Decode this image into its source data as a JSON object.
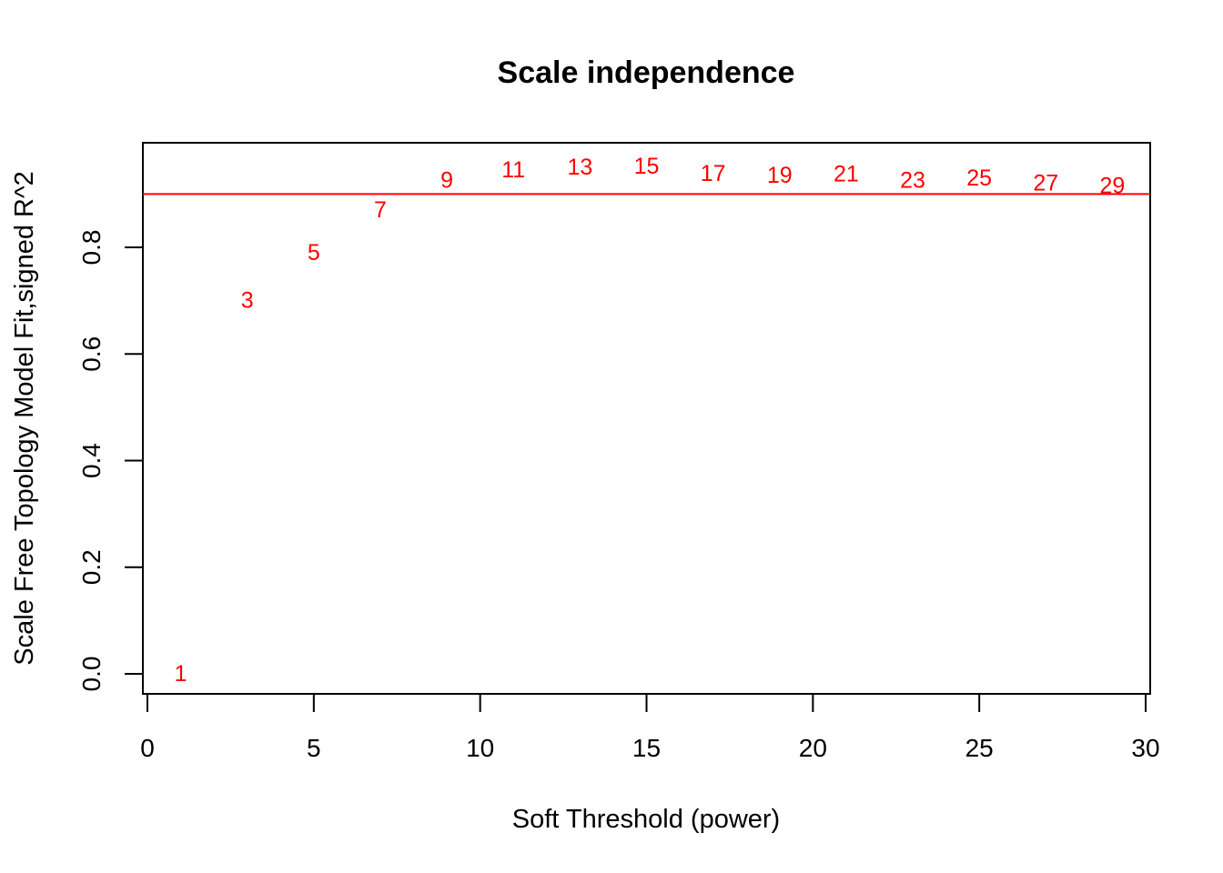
{
  "chart_data": {
    "type": "scatter",
    "title": "Scale independence",
    "xlabel": "Soft Threshold (power)",
    "ylabel": "Scale Free Topology Model Fit,signed R^2",
    "xlim": [
      0,
      30
    ],
    "ylim": [
      0,
      1
    ],
    "x_ticks": [
      "0",
      "5",
      "10",
      "15",
      "20",
      "25",
      "30"
    ],
    "y_ticks": [
      "0.0",
      "0.2",
      "0.4",
      "0.6",
      "0.8"
    ],
    "points": [
      {
        "x": 1,
        "y": 0.0,
        "label": "1"
      },
      {
        "x": 3,
        "y": 0.7,
        "label": "3"
      },
      {
        "x": 5,
        "y": 0.79,
        "label": "5"
      },
      {
        "x": 7,
        "y": 0.87,
        "label": "7"
      },
      {
        "x": 9,
        "y": 0.925,
        "label": "9"
      },
      {
        "x": 11,
        "y": 0.945,
        "label": "11"
      },
      {
        "x": 13,
        "y": 0.95,
        "label": "13"
      },
      {
        "x": 15,
        "y": 0.952,
        "label": "15"
      },
      {
        "x": 17,
        "y": 0.938,
        "label": "17"
      },
      {
        "x": 19,
        "y": 0.935,
        "label": "19"
      },
      {
        "x": 21,
        "y": 0.937,
        "label": "21"
      },
      {
        "x": 23,
        "y": 0.925,
        "label": "23"
      },
      {
        "x": 25,
        "y": 0.93,
        "label": "25"
      },
      {
        "x": 27,
        "y": 0.92,
        "label": "27"
      },
      {
        "x": 29,
        "y": 0.915,
        "label": "29"
      }
    ],
    "reference_line": {
      "y": 0.9,
      "color": "#ff0000"
    },
    "label_color": "#ff0000",
    "grid": false,
    "legend": "none"
  }
}
